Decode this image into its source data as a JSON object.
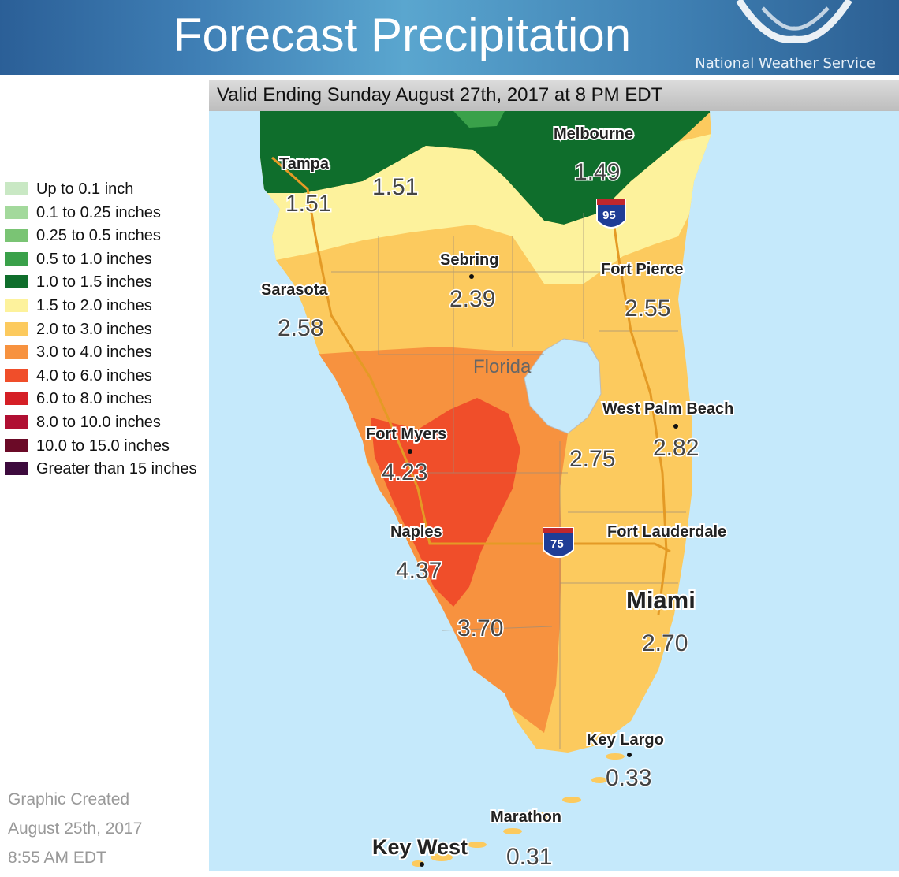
{
  "header": {
    "title": "Forecast Precipitation",
    "agency": "National Weather Service"
  },
  "valid_text": "Valid Ending Sunday August 27th, 2017 at 8 PM EDT",
  "legend": [
    {
      "label": "Up to 0.1 inch",
      "color": "#c9e8c4"
    },
    {
      "label": "0.1 to 0.25 inches",
      "color": "#a3d99c"
    },
    {
      "label": "0.25 to 0.5 inches",
      "color": "#7ac474"
    },
    {
      "label": "0.5 to 1.0 inches",
      "color": "#3aa14a"
    },
    {
      "label": "1.0 to 1.5 inches",
      "color": "#0f6e2c"
    },
    {
      "label": "1.5 to 2.0 inches",
      "color": "#fdf29c"
    },
    {
      "label": "2.0 to 3.0 inches",
      "color": "#fcca5e"
    },
    {
      "label": "3.0 to 4.0 inches",
      "color": "#f7923f"
    },
    {
      "label": "4.0 to 6.0 inches",
      "color": "#f04e2a"
    },
    {
      "label": "6.0 to 8.0 inches",
      "color": "#d51f26"
    },
    {
      "label": "8.0 to 10.0 inches",
      "color": "#b00f32"
    },
    {
      "label": "10.0 to 15.0 inches",
      "color": "#6b0a27"
    },
    {
      "label": "Greater than 15 inches",
      "color": "#3d0a3d"
    }
  ],
  "created": {
    "label": "Graphic Created",
    "date": "August 25th, 2017",
    "time": "8:55 AM EDT"
  },
  "map": {
    "state_label": "Florida",
    "cities": [
      {
        "name": "Tampa",
        "value": "1.51"
      },
      {
        "name": "Melbourne",
        "value": "1.49"
      },
      {
        "name": "Sebring",
        "value": "2.39"
      },
      {
        "name": "Sarasota",
        "value": "2.58"
      },
      {
        "name": "Fort Pierce",
        "value": "2.55"
      },
      {
        "name": "West Palm Beach",
        "value": "2.82"
      },
      {
        "name": "Fort Myers",
        "value": "4.23"
      },
      {
        "name": "Naples",
        "value": "4.37"
      },
      {
        "name": "Fort Lauderdale",
        "value": ""
      },
      {
        "name": "Miami",
        "value": "2.70"
      },
      {
        "name": "Key Largo",
        "value": "0.33"
      },
      {
        "name": "Marathon",
        "value": "0.31"
      },
      {
        "name": "Key West",
        "value": ""
      }
    ],
    "extra_values": [
      "1.51",
      "2.75",
      "3.70"
    ],
    "interstates": [
      "95",
      "75"
    ]
  },
  "colors": {
    "water": "#c5e9fb",
    "header": "#3f7fb5"
  }
}
